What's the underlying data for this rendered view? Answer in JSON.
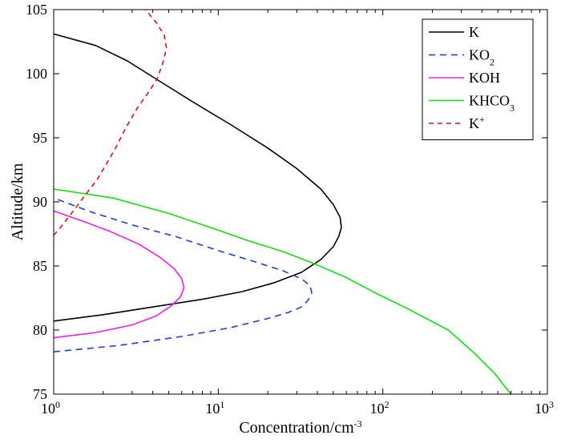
{
  "chart_data": {
    "type": "line",
    "xscale": "log",
    "xlim": [
      1,
      1000
    ],
    "ylim": [
      75,
      105
    ],
    "xlabel": "Concentration/cm",
    "xlabel_sup": "-3",
    "ylabel": "Altitude/km",
    "xticks": [
      {
        "value": 1,
        "base": "10",
        "exp": "0"
      },
      {
        "value": 10,
        "base": "10",
        "exp": "1"
      },
      {
        "value": 100,
        "base": "10",
        "exp": "2"
      },
      {
        "value": 1000,
        "base": "10",
        "exp": "3"
      }
    ],
    "yticks": [
      75,
      80,
      85,
      90,
      95,
      100,
      105
    ],
    "legend_position": "top-right",
    "series": [
      {
        "name": "K",
        "label_main": "K",
        "label_sub": "",
        "label_sup": "",
        "color": "#000000",
        "dash": "solid",
        "points": [
          [
            1.0,
            80.7
          ],
          [
            2.0,
            81.2
          ],
          [
            4.0,
            81.8
          ],
          [
            8.0,
            82.4
          ],
          [
            14.0,
            83.0
          ],
          [
            22.0,
            83.7
          ],
          [
            32.0,
            84.5
          ],
          [
            42.0,
            85.5
          ],
          [
            50.0,
            86.5
          ],
          [
            54.0,
            87.3
          ],
          [
            56.0,
            88.0
          ],
          [
            55.0,
            88.8
          ],
          [
            50.0,
            89.8
          ],
          [
            42.0,
            91.0
          ],
          [
            30.0,
            92.6
          ],
          [
            20.0,
            94.2
          ],
          [
            12.0,
            96.0
          ],
          [
            7.0,
            97.8
          ],
          [
            4.3,
            99.5
          ],
          [
            2.8,
            101.0
          ],
          [
            1.8,
            102.2
          ],
          [
            1.0,
            103.1
          ]
        ]
      },
      {
        "name": "KO2",
        "label_main": "KO",
        "label_sub": "2",
        "label_sup": "",
        "color": "#1f3fd6",
        "dash": "8,6",
        "points": [
          [
            1.0,
            78.3
          ],
          [
            2.5,
            78.8
          ],
          [
            6.0,
            79.5
          ],
          [
            12.0,
            80.2
          ],
          [
            20.0,
            80.9
          ],
          [
            27.0,
            81.4
          ],
          [
            32.0,
            81.8
          ],
          [
            35.0,
            82.3
          ],
          [
            37.0,
            82.9
          ],
          [
            36.0,
            83.5
          ],
          [
            32.0,
            84.0
          ],
          [
            25.0,
            84.6
          ],
          [
            17.0,
            85.3
          ],
          [
            10.0,
            86.2
          ],
          [
            5.5,
            87.3
          ],
          [
            3.0,
            88.2
          ],
          [
            1.7,
            89.2
          ],
          [
            1.0,
            90.3
          ]
        ]
      },
      {
        "name": "KOH",
        "label_main": "KOH",
        "label_sub": "",
        "label_sup": "",
        "color": "#ee22dd",
        "dash": "solid",
        "points": [
          [
            1.0,
            79.4
          ],
          [
            1.8,
            79.8
          ],
          [
            3.0,
            80.4
          ],
          [
            4.2,
            81.1
          ],
          [
            5.2,
            81.9
          ],
          [
            5.9,
            82.6
          ],
          [
            6.2,
            83.3
          ],
          [
            6.0,
            84.0
          ],
          [
            5.4,
            84.8
          ],
          [
            4.4,
            85.7
          ],
          [
            3.3,
            86.7
          ],
          [
            2.2,
            87.7
          ],
          [
            1.5,
            88.5
          ],
          [
            1.0,
            89.3
          ]
        ]
      },
      {
        "name": "KHCO3",
        "label_main": "KHCO",
        "label_sub": "3",
        "label_sup": "",
        "color": "#11dd11",
        "dash": "solid",
        "points": [
          [
            1.0,
            91.0
          ],
          [
            2.3,
            90.3
          ],
          [
            5.0,
            89.1
          ],
          [
            9.0,
            88.0
          ],
          [
            15.0,
            87.0
          ],
          [
            25.0,
            86.1
          ],
          [
            38.0,
            85.2
          ],
          [
            60.0,
            84.1
          ],
          [
            90.0,
            82.9
          ],
          [
            140.0,
            81.7
          ],
          [
            250.0,
            80.0
          ],
          [
            360.0,
            78.2
          ],
          [
            480.0,
            76.6
          ],
          [
            600.0,
            75.0
          ]
        ]
      },
      {
        "name": "K+",
        "label_main": "K",
        "label_sub": "",
        "label_sup": "+",
        "color": "#dd1111",
        "dash": "6,5",
        "points": [
          [
            1.0,
            87.4
          ],
          [
            1.1,
            88.0
          ],
          [
            1.3,
            89.2
          ],
          [
            1.55,
            90.5
          ],
          [
            1.85,
            91.8
          ],
          [
            2.1,
            93.0
          ],
          [
            2.4,
            94.3
          ],
          [
            2.75,
            95.8
          ],
          [
            3.25,
            97.4
          ],
          [
            3.8,
            98.6
          ],
          [
            4.25,
            99.6
          ],
          [
            4.6,
            100.8
          ],
          [
            4.85,
            102.0
          ],
          [
            4.7,
            103.0
          ],
          [
            4.2,
            104.0
          ],
          [
            3.6,
            105.0
          ]
        ]
      }
    ]
  }
}
